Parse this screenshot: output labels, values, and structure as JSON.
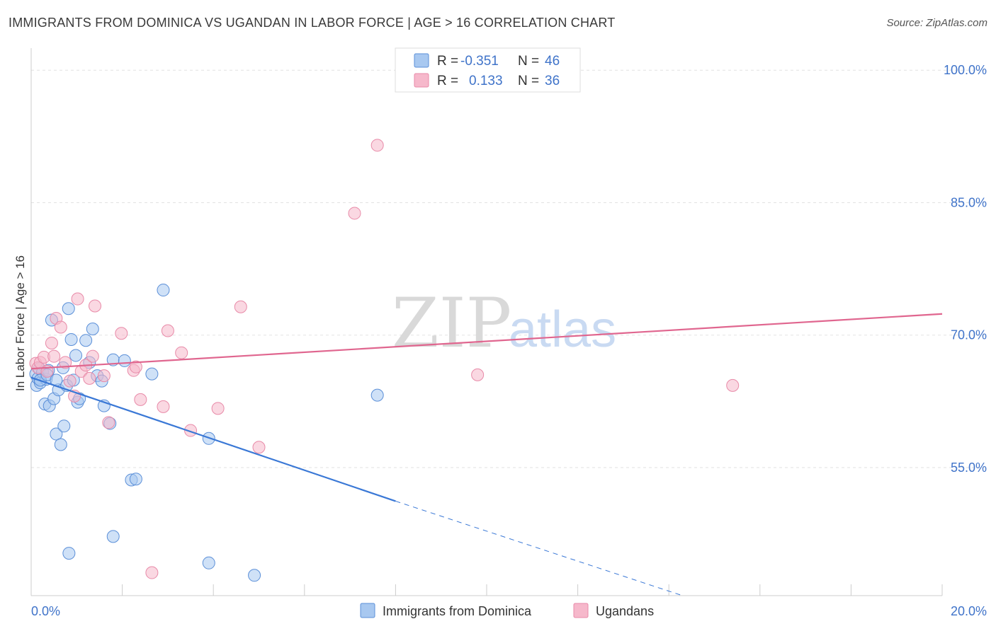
{
  "header": {
    "title": "IMMIGRANTS FROM DOMINICA VS UGANDAN IN LABOR FORCE | AGE > 16 CORRELATION CHART",
    "source": "Source: ZipAtlas.com"
  },
  "watermark": {
    "zip": "ZIP",
    "atlas": "atlas"
  },
  "legend_top": [
    {
      "r_label": "R =",
      "r_value": "-0.351",
      "n_label": "N =",
      "n_value": "46",
      "color": "#a8c8f0"
    },
    {
      "r_label": "R =",
      "r_value": "0.133",
      "n_label": "N =",
      "n_value": "36",
      "color": "#f6b8cb"
    }
  ],
  "legend_bottom": [
    {
      "label": "Immigrants from Dominica",
      "color": "#a8c8f0"
    },
    {
      "label": "Ugandans",
      "color": "#f6b8cb"
    }
  ],
  "colors": {
    "blue": "#3a78d6",
    "pink": "#e0668f",
    "blue_fill": "#a8c8f0",
    "pink_fill": "#f6b8cb",
    "tick": "#3f73c9"
  },
  "chart_data": {
    "type": "scatter",
    "title": "IMMIGRANTS FROM DOMINICA VS UGANDAN IN LABOR FORCE | AGE > 16 CORRELATION CHART",
    "xlabel": "",
    "ylabel": "In Labor Force | Age > 16",
    "xlim": [
      0,
      20
    ],
    "ylim": [
      40.5,
      102.5
    ],
    "x_tick_labels": [
      {
        "value": 0,
        "label": "0.0%"
      },
      {
        "value": 20,
        "label": "20.0%"
      }
    ],
    "y_tick_labels": [
      {
        "value": 55,
        "label": "55.0%"
      },
      {
        "value": 70,
        "label": "70.0%"
      },
      {
        "value": 85,
        "label": "85.0%"
      },
      {
        "value": 100,
        "label": "100.0%"
      }
    ],
    "grid": true,
    "legend_position": "top-center",
    "series": [
      {
        "name": "Immigrants from Dominica",
        "color": "#a8c8f0",
        "stroke": "#5b8fd8",
        "points": [
          [
            0.1,
            65.6
          ],
          [
            0.12,
            64.3
          ],
          [
            0.15,
            65.1
          ],
          [
            0.18,
            66.2
          ],
          [
            0.2,
            64.6
          ],
          [
            0.25,
            65.8
          ],
          [
            0.3,
            62.2
          ],
          [
            0.33,
            65.0
          ],
          [
            0.38,
            66.0
          ],
          [
            0.4,
            62.0
          ],
          [
            0.45,
            71.7
          ],
          [
            0.5,
            62.8
          ],
          [
            0.55,
            58.8
          ],
          [
            0.6,
            63.8
          ],
          [
            0.65,
            57.6
          ],
          [
            0.7,
            66.3
          ],
          [
            0.72,
            59.7
          ],
          [
            0.78,
            64.3
          ],
          [
            0.82,
            73.0
          ],
          [
            0.88,
            69.5
          ],
          [
            0.93,
            64.9
          ],
          [
            0.98,
            67.7
          ],
          [
            1.02,
            62.4
          ],
          [
            1.06,
            62.8
          ],
          [
            1.2,
            69.4
          ],
          [
            1.28,
            66.9
          ],
          [
            1.35,
            70.7
          ],
          [
            1.45,
            65.4
          ],
          [
            1.55,
            64.8
          ],
          [
            1.6,
            62.0
          ],
          [
            1.73,
            60.0
          ],
          [
            1.8,
            67.2
          ],
          [
            2.05,
            67.1
          ],
          [
            2.2,
            53.6
          ],
          [
            2.3,
            53.7
          ],
          [
            2.65,
            65.6
          ],
          [
            2.9,
            75.1
          ],
          [
            3.9,
            58.3
          ],
          [
            7.6,
            63.2
          ],
          [
            0.2,
            64.9
          ],
          [
            1.8,
            47.2
          ],
          [
            0.83,
            45.3
          ],
          [
            3.9,
            44.2
          ],
          [
            4.9,
            42.8
          ],
          [
            0.35,
            65.5
          ],
          [
            0.55,
            64.9
          ]
        ],
        "trend": {
          "x0": 0.0,
          "y0": 65.2,
          "x1": 8.0,
          "y1": 51.2,
          "dashed_to_x": 14.3,
          "dashed_to_y": 40.5
        }
      },
      {
        "name": "Ugandans",
        "color": "#f6b8cb",
        "stroke": "#e88aa8",
        "points": [
          [
            0.1,
            66.8
          ],
          [
            0.15,
            66.3
          ],
          [
            0.2,
            66.9
          ],
          [
            0.28,
            67.5
          ],
          [
            0.35,
            65.9
          ],
          [
            0.45,
            69.1
          ],
          [
            0.5,
            67.6
          ],
          [
            0.55,
            71.9
          ],
          [
            0.65,
            70.9
          ],
          [
            0.75,
            66.9
          ],
          [
            0.85,
            64.8
          ],
          [
            0.95,
            63.1
          ],
          [
            1.02,
            74.1
          ],
          [
            1.1,
            65.9
          ],
          [
            1.2,
            66.6
          ],
          [
            1.28,
            65.1
          ],
          [
            1.35,
            67.6
          ],
          [
            1.4,
            73.3
          ],
          [
            1.6,
            65.4
          ],
          [
            1.7,
            60.1
          ],
          [
            1.98,
            70.2
          ],
          [
            2.25,
            66.0
          ],
          [
            2.3,
            66.4
          ],
          [
            2.4,
            62.7
          ],
          [
            2.65,
            43.1
          ],
          [
            2.9,
            61.9
          ],
          [
            3.0,
            70.5
          ],
          [
            3.3,
            68.0
          ],
          [
            3.5,
            59.2
          ],
          [
            4.1,
            61.7
          ],
          [
            4.6,
            73.2
          ],
          [
            5.0,
            57.3
          ],
          [
            7.1,
            83.8
          ],
          [
            7.6,
            91.5
          ],
          [
            9.8,
            65.5
          ],
          [
            15.4,
            64.3
          ]
        ],
        "trend": {
          "x0": 0.0,
          "y0": 66.2,
          "x1": 20.0,
          "y1": 72.4
        }
      }
    ]
  }
}
